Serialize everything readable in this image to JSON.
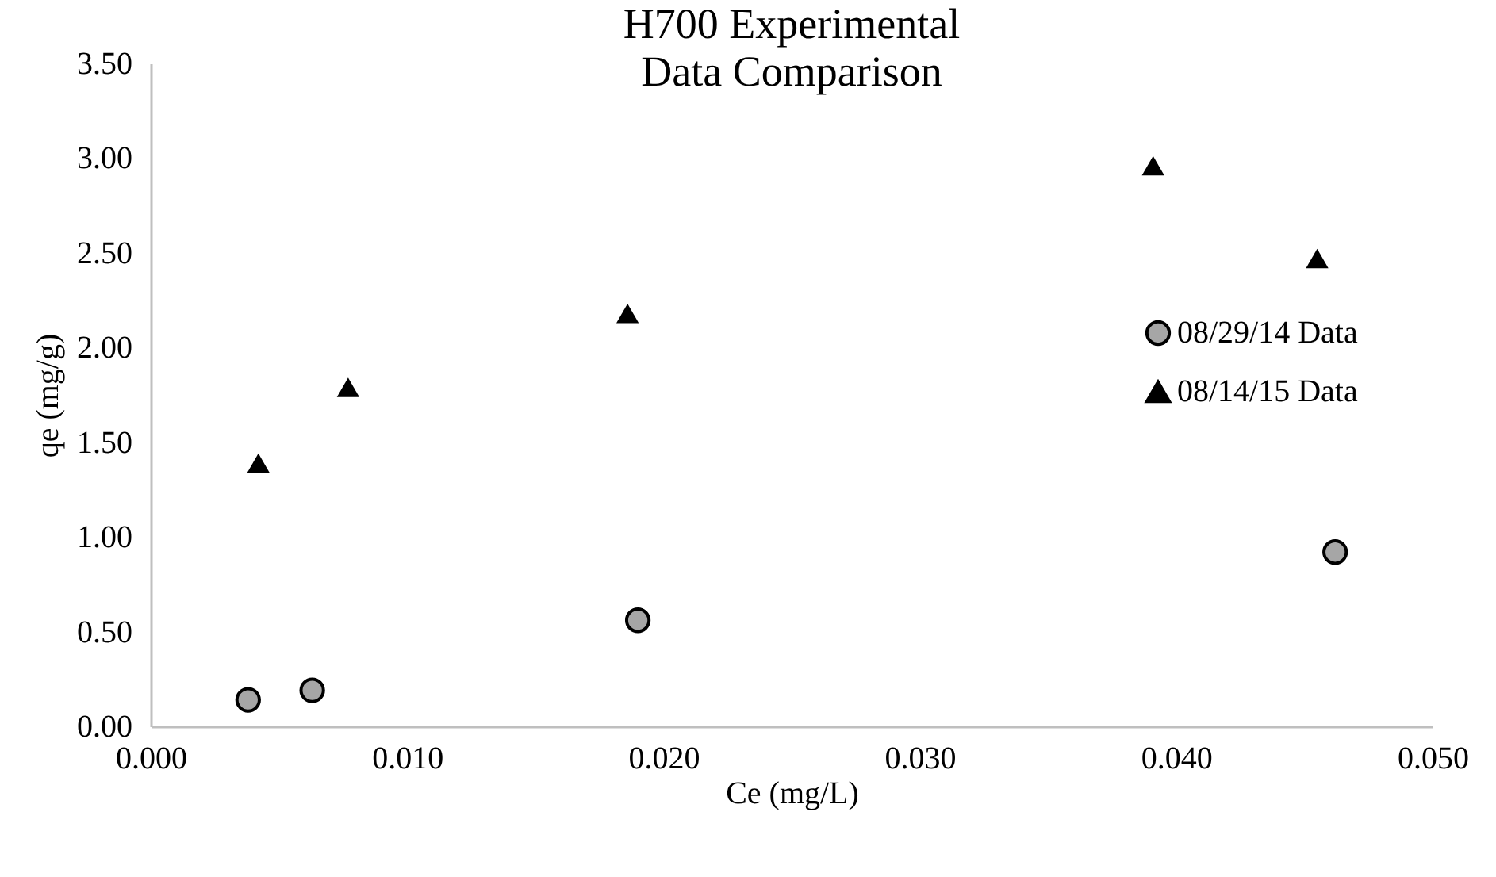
{
  "chart_data": {
    "type": "scatter",
    "title": "H700 Experimental Data Comparison",
    "xlabel": "Ce (mg/L)",
    "ylabel": "qe (mg/g)",
    "xlim": [
      0,
      0.05
    ],
    "ylim": [
      0,
      3.5
    ],
    "xticks": [
      {
        "value": 0,
        "label": "0.000"
      },
      {
        "value": 0.01,
        "label": "0.010"
      },
      {
        "value": 0.02,
        "label": "0.020"
      },
      {
        "value": 0.03,
        "label": "0.030"
      },
      {
        "value": 0.04,
        "label": "0.040"
      },
      {
        "value": 0.05,
        "label": "0.050"
      }
    ],
    "yticks": [
      {
        "value": 0,
        "label": "0.00"
      },
      {
        "value": 0.5,
        "label": "0.50"
      },
      {
        "value": 1,
        "label": "1.00"
      },
      {
        "value": 1.5,
        "label": "1.50"
      },
      {
        "value": 2,
        "label": "2.00"
      },
      {
        "value": 2.5,
        "label": "2.50"
      },
      {
        "value": 3,
        "label": "3.00"
      },
      {
        "value": 3.5,
        "label": "3.50"
      }
    ],
    "grid": false,
    "legend": "right",
    "series": [
      {
        "name": "08/29/14 Data",
        "color": "#a6a6a6",
        "marker": "circle",
        "x": [
          0.0038,
          0.0063,
          0.019,
          0.0462
        ],
        "values": [
          0.14,
          0.19,
          0.56,
          0.92
        ]
      },
      {
        "name": "08/14/15 Data",
        "color": "#000000",
        "marker": "triangle",
        "x": [
          0.0042,
          0.0077,
          0.0186,
          0.0391,
          0.0455
        ],
        "values": [
          1.39,
          1.79,
          2.18,
          2.96,
          2.47
        ]
      }
    ]
  }
}
